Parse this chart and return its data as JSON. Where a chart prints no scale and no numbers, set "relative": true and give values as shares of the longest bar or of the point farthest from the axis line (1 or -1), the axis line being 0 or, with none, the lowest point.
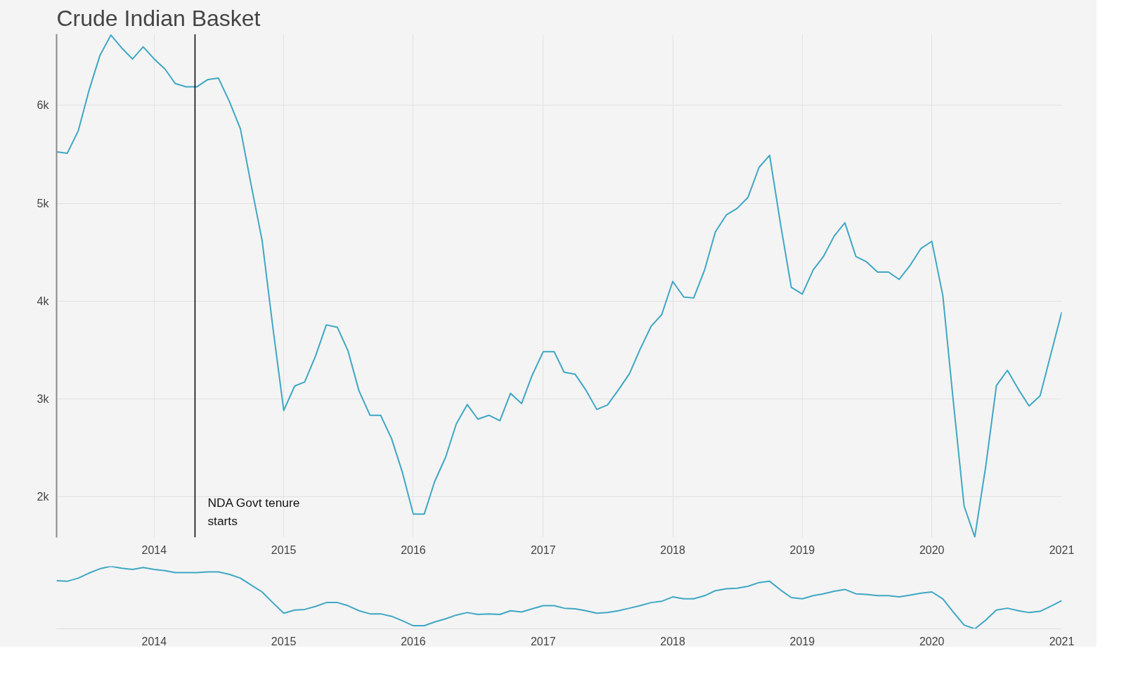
{
  "chart_data": [
    {
      "type": "line",
      "title": "Crude Indian Basket",
      "x": [
        "2013-04",
        "2013-05",
        "2013-06",
        "2013-07",
        "2013-08",
        "2013-09",
        "2013-10",
        "2013-11",
        "2013-12",
        "2014-01",
        "2014-02",
        "2014-03",
        "2014-04",
        "2014-05",
        "2014-06",
        "2014-07",
        "2014-08",
        "2014-09",
        "2014-10",
        "2014-11",
        "2014-12",
        "2015-01",
        "2015-02",
        "2015-03",
        "2015-04",
        "2015-05",
        "2015-06",
        "2015-07",
        "2015-08",
        "2015-09",
        "2015-10",
        "2015-11",
        "2015-12",
        "2016-01",
        "2016-02",
        "2016-03",
        "2016-04",
        "2016-05",
        "2016-06",
        "2016-07",
        "2016-08",
        "2016-09",
        "2016-10",
        "2016-11",
        "2016-12",
        "2017-01",
        "2017-02",
        "2017-03",
        "2017-04",
        "2017-05",
        "2017-06",
        "2017-07",
        "2017-08",
        "2017-09",
        "2017-10",
        "2017-11",
        "2017-12",
        "2018-01",
        "2018-02",
        "2018-03",
        "2018-04",
        "2018-05",
        "2018-06",
        "2018-07",
        "2018-08",
        "2018-09",
        "2018-10",
        "2018-11",
        "2018-12",
        "2019-01",
        "2019-02",
        "2019-03",
        "2019-04",
        "2019-05",
        "2019-06",
        "2019-07",
        "2019-08",
        "2019-09",
        "2019-10",
        "2019-11",
        "2019-12",
        "2020-01",
        "2020-02",
        "2020-03",
        "2020-04",
        "2020-05",
        "2020-06",
        "2020-07",
        "2020-08",
        "2020-09",
        "2020-10",
        "2020-11",
        "2020-12",
        "2021-01"
      ],
      "series": [
        {
          "color": "#3fa7c4",
          "values": [
            5525,
            5510,
            5740,
            6150,
            6510,
            6720,
            6590,
            6475,
            6600,
            6475,
            6370,
            6225,
            6190,
            6190,
            6265,
            6280,
            6040,
            5760,
            5190,
            4620,
            3740,
            2880,
            3130,
            3170,
            3440,
            3755,
            3730,
            3490,
            3080,
            2830,
            2830,
            2590,
            2250,
            1820,
            1820,
            2150,
            2400,
            2740,
            2940,
            2790,
            2830,
            2775,
            3055,
            2950,
            3240,
            3480,
            3480,
            3270,
            3250,
            3090,
            2890,
            2935,
            3090,
            3255,
            3505,
            3740,
            3860,
            4200,
            4040,
            4030,
            4320,
            4705,
            4880,
            4945,
            5060,
            5365,
            5490,
            4780,
            4140,
            4070,
            4320,
            4450,
            4665,
            4800,
            4455,
            4400,
            4295,
            4295,
            4220,
            4365,
            4535,
            4610,
            4055,
            2990,
            1900,
            1585,
            2310,
            3135,
            3290,
            3095,
            2925,
            3030,
            3450,
            3885
          ]
        }
      ],
      "xlim": [
        "2013-04",
        "2021-01"
      ],
      "ylim": [
        1580,
        6730
      ],
      "xticks": [
        "2014",
        "2015",
        "2016",
        "2017",
        "2018",
        "2019",
        "2020",
        "2021"
      ],
      "yticks": [
        {
          "value": 2000,
          "label": "2k"
        },
        {
          "value": 3000,
          "label": "3k"
        },
        {
          "value": 4000,
          "label": "4k"
        },
        {
          "value": 5000,
          "label": "5k"
        },
        {
          "value": 6000,
          "label": "6k"
        }
      ],
      "ref_lines": [
        {
          "axis": "x",
          "value": "2014-04-26",
          "label": "NDA Govt tenure starts",
          "color": "#000000"
        }
      ],
      "grid": true,
      "marker": "none",
      "line_style": "solid"
    },
    {
      "type": "line",
      "relative": true,
      "x": [
        "2013-04",
        "2013-05",
        "2013-06",
        "2013-07",
        "2013-08",
        "2013-09",
        "2013-10",
        "2013-11",
        "2013-12",
        "2014-01",
        "2014-02",
        "2014-03",
        "2014-04",
        "2014-05",
        "2014-06",
        "2014-07",
        "2014-08",
        "2014-09",
        "2014-10",
        "2014-11",
        "2014-12",
        "2015-01",
        "2015-02",
        "2015-03",
        "2015-04",
        "2015-05",
        "2015-06",
        "2015-07",
        "2015-08",
        "2015-09",
        "2015-10",
        "2015-11",
        "2015-12",
        "2016-01",
        "2016-02",
        "2016-03",
        "2016-04",
        "2016-05",
        "2016-06",
        "2016-07",
        "2016-08",
        "2016-09",
        "2016-10",
        "2016-11",
        "2016-12",
        "2017-01",
        "2017-02",
        "2017-03",
        "2017-04",
        "2017-05",
        "2017-06",
        "2017-07",
        "2017-08",
        "2017-09",
        "2017-10",
        "2017-11",
        "2017-12",
        "2018-01",
        "2018-02",
        "2018-03",
        "2018-04",
        "2018-05",
        "2018-06",
        "2018-07",
        "2018-08",
        "2018-09",
        "2018-10",
        "2018-11",
        "2018-12",
        "2019-01",
        "2019-02",
        "2019-03",
        "2019-04",
        "2019-05",
        "2019-06",
        "2019-07",
        "2019-08",
        "2019-09",
        "2019-10",
        "2019-11",
        "2019-12",
        "2020-01",
        "2020-02",
        "2020-03",
        "2020-04",
        "2020-05",
        "2020-06",
        "2020-07",
        "2020-08",
        "2020-09",
        "2020-10",
        "2020-11",
        "2020-12",
        "2021-01"
      ],
      "series": [
        {
          "color": "#3fa7c4",
          "values": [
            0.77,
            0.76,
            0.81,
            0.89,
            0.96,
            1.0,
            0.97,
            0.95,
            0.98,
            0.95,
            0.93,
            0.9,
            0.9,
            0.9,
            0.91,
            0.91,
            0.87,
            0.81,
            0.7,
            0.59,
            0.42,
            0.25,
            0.3,
            0.31,
            0.36,
            0.42,
            0.42,
            0.37,
            0.29,
            0.24,
            0.24,
            0.2,
            0.13,
            0.05,
            0.05,
            0.11,
            0.16,
            0.22,
            0.26,
            0.23,
            0.24,
            0.23,
            0.29,
            0.27,
            0.32,
            0.37,
            0.37,
            0.33,
            0.32,
            0.29,
            0.25,
            0.26,
            0.29,
            0.33,
            0.37,
            0.42,
            0.44,
            0.51,
            0.48,
            0.48,
            0.53,
            0.61,
            0.64,
            0.65,
            0.68,
            0.74,
            0.76,
            0.62,
            0.5,
            0.48,
            0.53,
            0.56,
            0.6,
            0.63,
            0.56,
            0.55,
            0.53,
            0.53,
            0.51,
            0.54,
            0.57,
            0.59,
            0.48,
            0.27,
            0.06,
            0.0,
            0.14,
            0.3,
            0.33,
            0.29,
            0.26,
            0.28,
            0.36,
            0.45
          ]
        }
      ],
      "xlim": [
        "2013-04",
        "2021-01"
      ],
      "xticks": [
        "2014",
        "2015",
        "2016",
        "2017",
        "2018",
        "2019",
        "2020",
        "2021"
      ],
      "marker": "none",
      "line_style": "solid"
    }
  ]
}
